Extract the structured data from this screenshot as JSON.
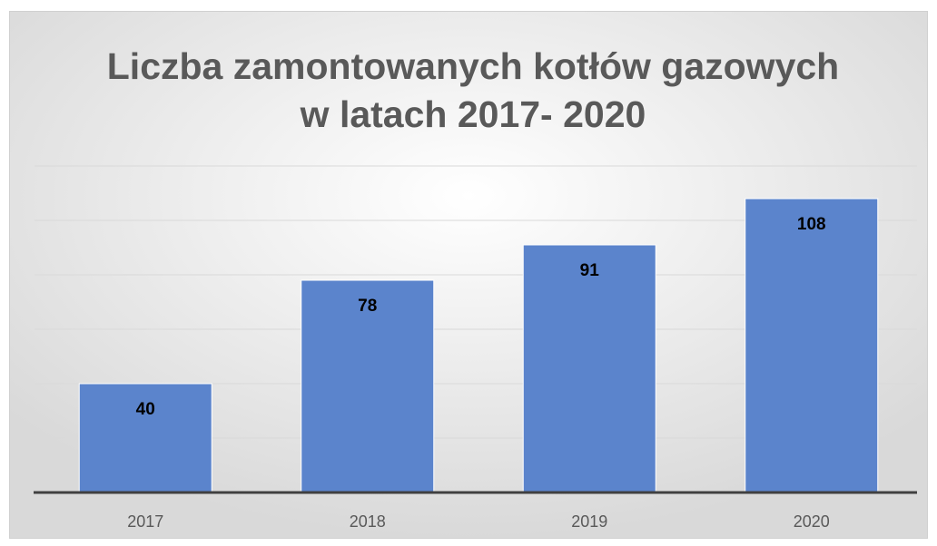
{
  "chart_data": {
    "type": "bar",
    "title": [
      "Liczba zamontowanych kotłów gazowych",
      "w latach 2017- 2020"
    ],
    "categories": [
      "2017",
      "2018",
      "2019",
      "2020"
    ],
    "values": [
      40,
      78,
      91,
      108
    ],
    "color": "#5b84cc",
    "ylim": [
      0,
      120
    ],
    "yticks": [
      0,
      20,
      40,
      60,
      80,
      100,
      120
    ],
    "grid": true
  }
}
